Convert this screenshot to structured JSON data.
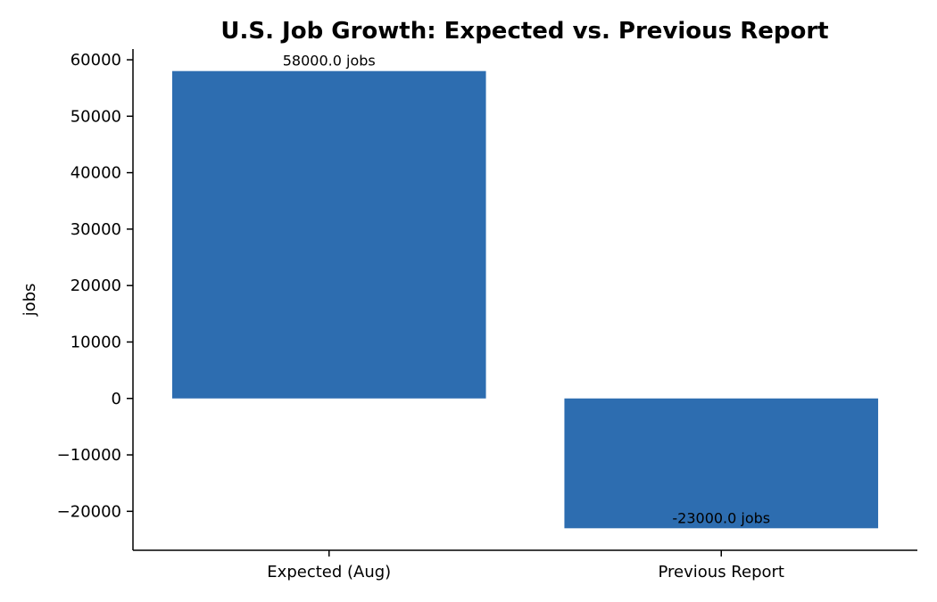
{
  "chart_data": {
    "type": "bar",
    "title": "U.S. Job Growth: Expected vs. Previous Report",
    "xlabel": "",
    "ylabel": "jobs",
    "categories": [
      "Expected (Aug)",
      "Previous Report"
    ],
    "values": [
      58000,
      -23000
    ],
    "data_labels": [
      "58000.0 jobs",
      "-23000.0 jobs"
    ],
    "yticks": [
      -20000,
      -10000,
      0,
      10000,
      20000,
      30000,
      40000,
      50000,
      60000
    ],
    "ytick_labels": [
      "−20000",
      "−10000",
      "0",
      "10000",
      "20000",
      "30000",
      "40000",
      "50000",
      "60000"
    ],
    "ylim": [
      -26900,
      61900
    ],
    "grid": false,
    "legend": "none",
    "bar_color": "#2d6db0"
  }
}
